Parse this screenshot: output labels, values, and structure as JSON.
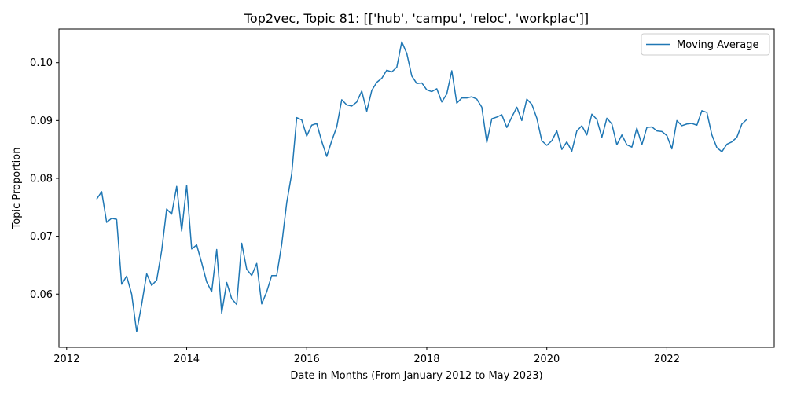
{
  "chart_data": {
    "type": "line",
    "title": "Top2vec, Topic 81: [['hub', 'campu', 'reloc', 'workplac']]",
    "xlabel": "Date in Months (From January 2012 to May 2023)",
    "ylabel": "Topic Proportion",
    "xlim": [
      "2011-11-15",
      "2023-10-15"
    ],
    "ylim": [
      0.0508,
      0.1058
    ],
    "x_ticks": [
      "2012",
      "2014",
      "2016",
      "2018",
      "2020",
      "2022"
    ],
    "y_ticks": [
      "0.06",
      "0.07",
      "0.08",
      "0.09",
      "0.10"
    ],
    "grid": false,
    "legend_position": "top-right",
    "series": [
      {
        "name": "Moving Average",
        "color": "#1f77b4",
        "x": [
          "2012-07",
          "2012-08",
          "2012-09",
          "2012-10",
          "2012-11",
          "2012-12",
          "2013-01",
          "2013-02",
          "2013-03",
          "2013-04",
          "2013-05",
          "2013-06",
          "2013-07",
          "2013-08",
          "2013-09",
          "2013-10",
          "2013-11",
          "2013-12",
          "2014-01",
          "2014-02",
          "2014-03",
          "2014-04",
          "2014-05",
          "2014-06",
          "2014-07",
          "2014-08",
          "2014-09",
          "2014-10",
          "2014-11",
          "2014-12",
          "2015-01",
          "2015-02",
          "2015-03",
          "2015-04",
          "2015-05",
          "2015-06",
          "2015-07",
          "2015-08",
          "2015-09",
          "2015-10",
          "2015-11",
          "2015-12",
          "2016-01",
          "2016-02",
          "2016-03",
          "2016-04",
          "2016-05",
          "2016-06",
          "2016-07",
          "2016-08",
          "2016-09",
          "2016-10",
          "2016-11",
          "2016-12",
          "2017-01",
          "2017-02",
          "2017-03",
          "2017-04",
          "2017-05",
          "2017-06",
          "2017-07",
          "2017-08",
          "2017-09",
          "2017-10",
          "2017-11",
          "2017-12",
          "2018-01",
          "2018-02",
          "2018-03",
          "2018-04",
          "2018-05",
          "2018-06",
          "2018-07",
          "2018-08",
          "2018-09",
          "2018-10",
          "2018-11",
          "2018-12",
          "2019-01",
          "2019-02",
          "2019-03",
          "2019-04",
          "2019-05",
          "2019-06",
          "2019-07",
          "2019-08",
          "2019-09",
          "2019-10",
          "2019-11",
          "2019-12",
          "2020-01",
          "2020-02",
          "2020-03",
          "2020-04",
          "2020-05",
          "2020-06",
          "2020-07",
          "2020-08",
          "2020-09",
          "2020-10",
          "2020-11",
          "2020-12",
          "2021-01",
          "2021-02",
          "2021-03",
          "2021-04",
          "2021-05",
          "2021-06",
          "2021-07",
          "2021-08",
          "2021-09",
          "2021-10",
          "2021-11",
          "2021-12",
          "2022-01",
          "2022-02",
          "2022-03",
          "2022-04",
          "2022-05",
          "2022-06",
          "2022-07",
          "2022-08",
          "2022-09",
          "2022-10",
          "2022-11",
          "2022-12",
          "2023-01",
          "2023-02",
          "2023-03",
          "2023-04",
          "2023-05"
        ],
        "values": [
          0.0764,
          0.0777,
          0.0724,
          0.0731,
          0.0729,
          0.0617,
          0.0631,
          0.06,
          0.0535,
          0.0582,
          0.0635,
          0.0615,
          0.0624,
          0.0675,
          0.0747,
          0.0738,
          0.0786,
          0.0709,
          0.0788,
          0.0678,
          0.0685,
          0.0654,
          0.0621,
          0.0604,
          0.0677,
          0.0567,
          0.062,
          0.0592,
          0.0582,
          0.0688,
          0.0643,
          0.0632,
          0.0653,
          0.0583,
          0.0604,
          0.0632,
          0.0632,
          0.0686,
          0.0758,
          0.0808,
          0.0905,
          0.0901,
          0.0873,
          0.0892,
          0.0895,
          0.0864,
          0.0838,
          0.0865,
          0.0889,
          0.0936,
          0.0927,
          0.0925,
          0.0932,
          0.0951,
          0.0916,
          0.0952,
          0.0966,
          0.0973,
          0.0987,
          0.0984,
          0.0992,
          0.1036,
          0.1016,
          0.0977,
          0.0964,
          0.0965,
          0.0953,
          0.095,
          0.0955,
          0.0932,
          0.0946,
          0.0986,
          0.093,
          0.0939,
          0.0939,
          0.0941,
          0.0937,
          0.0923,
          0.0862,
          0.0903,
          0.0906,
          0.091,
          0.0888,
          0.0906,
          0.0923,
          0.09,
          0.0937,
          0.0928,
          0.0904,
          0.0865,
          0.0857,
          0.0865,
          0.0882,
          0.085,
          0.0863,
          0.0847,
          0.0882,
          0.0891,
          0.0875,
          0.0911,
          0.0902,
          0.0871,
          0.0904,
          0.0894,
          0.0858,
          0.0875,
          0.0858,
          0.0854,
          0.0887,
          0.0858,
          0.0888,
          0.0889,
          0.0882,
          0.0881,
          0.0874,
          0.0851,
          0.09,
          0.0891,
          0.0894,
          0.0895,
          0.0892,
          0.0917,
          0.0914,
          0.0875,
          0.0853,
          0.0846,
          0.0859,
          0.0863,
          0.0871,
          0.0894,
          0.0902
        ]
      }
    ]
  }
}
